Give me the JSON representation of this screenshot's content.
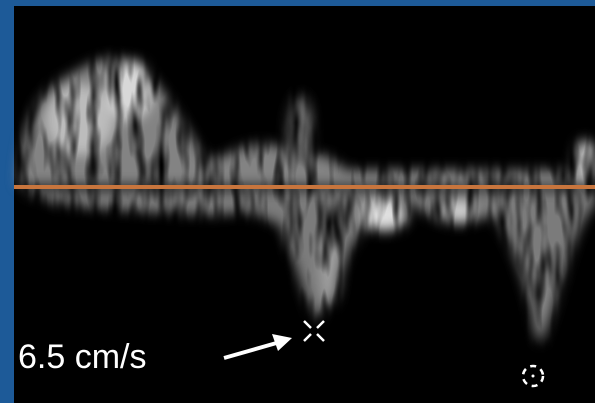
{
  "annotation": {
    "label": "6.5 cm/s"
  }
}
